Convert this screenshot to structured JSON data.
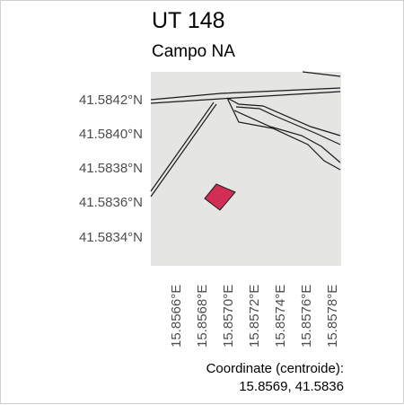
{
  "title": "UT 148",
  "subtitle": "Campo NA",
  "colors": {
    "map_background": "#e5e6e3",
    "parcel_fill": "#d22d55",
    "road_line": "#1a1a1a",
    "label_gray": "#4d4d4d"
  },
  "axes": {
    "lat_labels": [
      "41.5842°N",
      "41.5840°N",
      "41.5838°N",
      "41.5836°N",
      "41.5834°N"
    ],
    "lon_labels": [
      "15.8566°E",
      "15.8568°E",
      "15.8570°E",
      "15.8572°E",
      "15.8574°E",
      "15.8576°E",
      "15.8578°E"
    ]
  },
  "caption": {
    "line1": "Coordinate (centroide):",
    "line2": "15.8569, 41.5836"
  }
}
